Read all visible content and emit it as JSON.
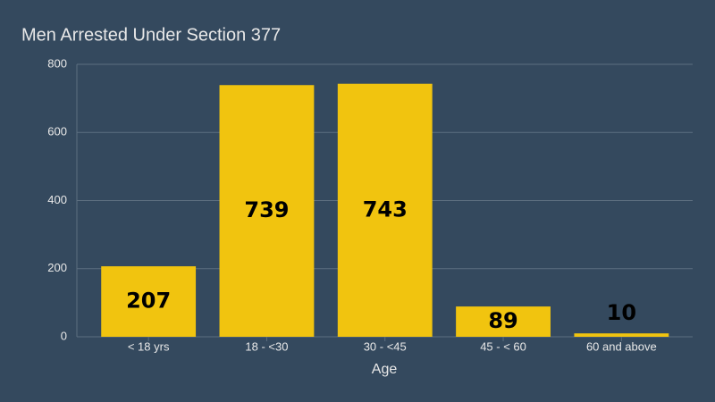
{
  "chart_data": {
    "type": "bar",
    "title": "Men Arrested Under Section 377",
    "x_label": "Age",
    "categories": [
      "< 18 yrs",
      "18 - <30",
      "30 - <45",
      "45 - < 60",
      "60 and above"
    ],
    "values": [
      207,
      739,
      743,
      89,
      10
    ],
    "color": "#f1c40f",
    "ylim": [
      0,
      800
    ],
    "yticks": [
      0,
      200,
      400,
      600,
      800
    ],
    "grid": true
  }
}
